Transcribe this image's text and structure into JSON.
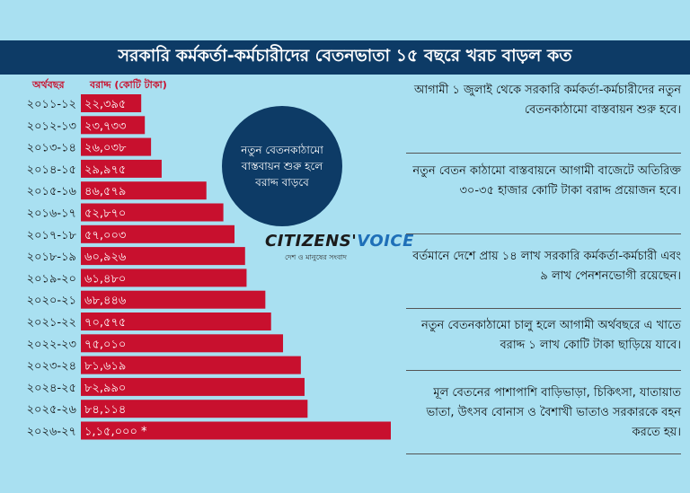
{
  "title": "সরকারি কর্মকর্তা-কর্মচারীদের বেতনভাতা ১৫ বছরে খরচ বাড়ল কত",
  "column_headers": {
    "year": "অর্থবছর",
    "allocation": "বরাদ্দ (কোটি টাকা)"
  },
  "bubble_text": "নতুন বেতনকাঠামো বাস্তবায়ন শুরু হলে বরাদ্দ বাড়বে",
  "logo": {
    "name_part1": "CITIZENS'",
    "name_part2": "VOICE",
    "tagline": "দেশ ও মানুষের সংবাদ"
  },
  "facts": [
    "আগামী ১ জুলাই থেকে সরকারি কর্মকর্তা-কর্মচারীদের নতুন বেতনকাঠামো বাস্তবায়ন শুরু হবে।",
    "নতুন বেতন কাঠামো বাস্তবায়নে আগামী বাজেটে অতিরিক্ত ৩০-৩৫ হাজার কোটি টাকা বরাদ্দ প্রয়োজন হবে।",
    "বর্তমানে দেশে প্রায় ১৪ লাখ সরকারি কর্মকর্তা-কর্মচারী এবং ৯ লাখ পেনশনভোগী রয়েছেন।",
    "নতুন বেতনকাঠামো চালু হলে আগামী অর্থবছরে এ খাতে বরাদ্দ ১ লাখ কোটি টাকা ছাড়িয়ে যাবে।",
    "মূল বেতনের পাশাপাশি বাড়িভাড়া, চিকিৎসা, যাতায়াত ভাতা, উৎসব বোনাস ও বৈশাখী ভাতাও সরকারকে বহন করতে হয়।"
  ],
  "colors": {
    "bar": "#c8102e",
    "title_bg": "#0d3b66",
    "background": "#a9e0f1",
    "bubble": "#0d3b66"
  },
  "chart_data": {
    "type": "bar",
    "orientation": "horizontal",
    "xlabel": "অর্থবছর",
    "ylabel": "বরাদ্দ (কোটি টাকা)",
    "categories": [
      "২০১১-১২",
      "২০১২-১৩",
      "২০১৩-১৪",
      "২০১৪-১৫",
      "২০১৫-১৬",
      "২০১৬-১৭",
      "২০১৭-১৮",
      "২০১৮-১৯",
      "২০১৯-২০",
      "২০২০-২১",
      "২০২১-২২",
      "২০২২-২৩",
      "২০২৩-২৪",
      "২০২৪-২৫",
      "২০২৫-২৬",
      "২০২৬-২৭"
    ],
    "values": [
      22395,
      23733,
      26038,
      29975,
      46579,
      52870,
      57003,
      60926,
      61480,
      68446,
      70575,
      75010,
      81619,
      82990,
      84114,
      115000
    ],
    "value_labels": [
      "২২,৩৯৫",
      "২৩,৭৩৩",
      "২৬,০৩৮",
      "২৯,৯৭৫",
      "৪৬,৫৭৯",
      "৫২,৮৭০",
      "৫৭,০০৩",
      "৬০,৯২৬",
      "৬১,৪৮০",
      "৬৮,৪৪৬",
      "৭০,৫৭৫",
      "৭৫,০১০",
      "৮১,৬১৯",
      "৮২,৯৯০",
      "৮৪,১১৪",
      "১,১৫,০০০ *"
    ],
    "xlim": [
      0,
      115000
    ]
  }
}
